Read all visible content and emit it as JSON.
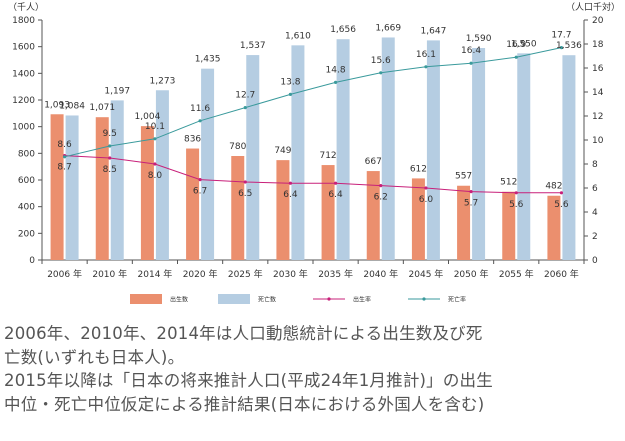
{
  "chart_data": {
    "type": "bar",
    "categories": [
      "2006 年",
      "2010 年",
      "2014 年",
      "2020 年",
      "2025 年",
      "2030 年",
      "2035 年",
      "2040 年",
      "2045 年",
      "2050 年",
      "2055 年",
      "2060 年"
    ],
    "left_axis_unit": "（千人）",
    "right_axis_unit": "（人口千対）",
    "ylim_left": [
      0,
      1800
    ],
    "ylim_right": [
      0,
      20
    ],
    "left_ticks": [
      0,
      200,
      400,
      600,
      800,
      1000,
      1200,
      1400,
      1600,
      1800
    ],
    "right_ticks": [
      0,
      2,
      4,
      6,
      8,
      10,
      12,
      14,
      16,
      18,
      20
    ],
    "grid": false,
    "legend_position": "bottom",
    "series": [
      {
        "name": "出生数",
        "kind": "bar",
        "axis": "left",
        "color": "#eb8f6e",
        "values": [
          1093,
          1071,
          1004,
          836,
          780,
          749,
          712,
          667,
          612,
          557,
          512,
          482
        ],
        "labels": [
          "1,093",
          "1,071",
          "1,004",
          "836",
          "780",
          "749",
          "712",
          "667",
          "612",
          "557",
          "512",
          "482"
        ]
      },
      {
        "name": "死亡数",
        "kind": "bar",
        "axis": "left",
        "color": "#b5cde2",
        "values": [
          1084,
          1197,
          1273,
          1435,
          1537,
          1610,
          1656,
          1669,
          1647,
          1590,
          1550,
          1536
        ],
        "labels": [
          "1,084",
          "1,197",
          "1,273",
          "1,435",
          "1,537",
          "1,610",
          "1,656",
          "1,669",
          "1,647",
          "1,590",
          "1,550",
          "1,536"
        ]
      },
      {
        "name": "出生率",
        "kind": "line",
        "axis": "right",
        "color": "#c8207a",
        "values": [
          8.7,
          8.5,
          8.0,
          6.7,
          6.5,
          6.4,
          6.4,
          6.2,
          6.0,
          5.7,
          5.6,
          5.6
        ],
        "labels": [
          "8.7",
          "8.5",
          "8.0",
          "6.7",
          "6.5",
          "6.4",
          "6.4",
          "6.2",
          "6.0",
          "5.7",
          "5.6",
          "5.6"
        ]
      },
      {
        "name": "死亡率",
        "kind": "line",
        "axis": "right",
        "color": "#3a9a9c",
        "values": [
          8.6,
          9.5,
          10.1,
          11.6,
          12.7,
          13.8,
          14.8,
          15.6,
          16.1,
          16.4,
          16.9,
          17.7
        ],
        "labels": [
          "8.6",
          "9.5",
          "10.1",
          "11.6",
          "12.7",
          "13.8",
          "14.8",
          "15.6",
          "16.1",
          "16.4",
          "16.9",
          "17.7"
        ]
      }
    ]
  },
  "caption": {
    "line1": "2006年、2010年、2014年は人口動態統計による出生数及び死",
    "line2": "亡数(いずれも日本人)。",
    "line3": "2015年以降は「日本の将来推計人口(平成24年1月推計)」の出生",
    "line4": "中位・死亡中位仮定による推計結果(日本における外国人を含む)"
  }
}
